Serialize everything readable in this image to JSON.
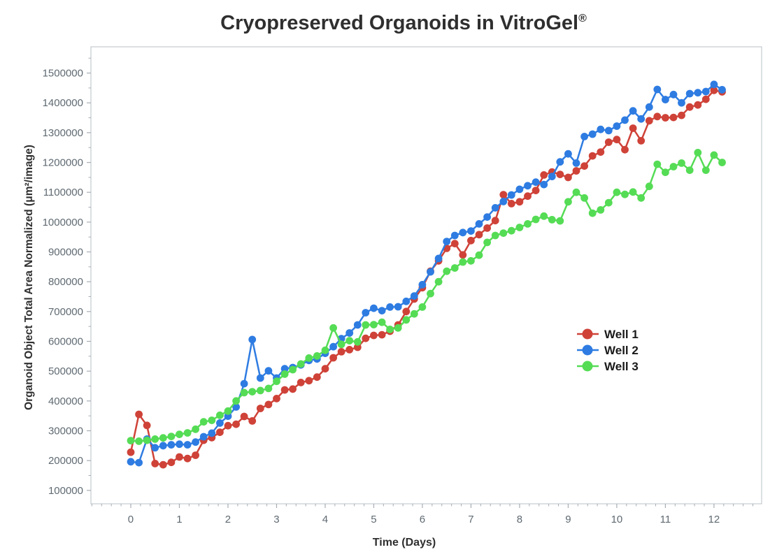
{
  "title": {
    "text": "Cryopreserved Organoids in VitroGel",
    "registered_mark": "®"
  },
  "chart_data": {
    "type": "line",
    "title": "Cryopreserved Organoids in VitroGel®",
    "xlabel": "Time (Days)",
    "ylabel": "Organoid Object Total Area Normalized (μm²/image)",
    "xlim": [
      -0.82,
      12.98
    ],
    "ylim": [
      55000,
      1588000
    ],
    "x_ticks": [
      0,
      1,
      2,
      3,
      4,
      5,
      6,
      7,
      8,
      9,
      10,
      11,
      12
    ],
    "x_minor_tick_step": 0.2,
    "y_ticks": [
      100000,
      200000,
      300000,
      400000,
      500000,
      600000,
      700000,
      800000,
      900000,
      1000000,
      1100000,
      1200000,
      1300000,
      1400000,
      1500000
    ],
    "y_minor_tick_step": 50000,
    "grid": false,
    "legend_position": "center-right",
    "marker": "circle",
    "x": [
      0,
      0.167,
      0.333,
      0.5,
      0.667,
      0.833,
      1,
      1.167,
      1.333,
      1.5,
      1.667,
      1.833,
      2,
      2.167,
      2.333,
      2.5,
      2.667,
      2.833,
      3,
      3.167,
      3.333,
      3.5,
      3.667,
      3.833,
      4,
      4.167,
      4.333,
      4.5,
      4.667,
      4.833,
      5,
      5.167,
      5.333,
      5.5,
      5.667,
      5.833,
      6,
      6.167,
      6.333,
      6.5,
      6.667,
      6.833,
      7,
      7.167,
      7.333,
      7.5,
      7.667,
      7.833,
      8,
      8.167,
      8.333,
      8.5,
      8.667,
      8.833,
      9,
      9.167,
      9.333,
      9.5,
      9.667,
      9.833,
      10,
      10.167,
      10.333,
      10.5,
      10.667,
      10.833,
      11,
      11.167,
      11.333,
      11.5,
      11.667,
      11.833,
      12,
      12.167
    ],
    "series": [
      {
        "name": "Well 1",
        "color": "#cf4238",
        "values": [
          228000,
          355000,
          318000,
          190000,
          186000,
          194000,
          212000,
          207000,
          218000,
          268000,
          277000,
          295000,
          317000,
          322000,
          348000,
          333000,
          375000,
          388000,
          408000,
          437000,
          440000,
          462000,
          468000,
          480000,
          508000,
          545000,
          565000,
          572000,
          580000,
          610000,
          620000,
          622000,
          634000,
          655000,
          700000,
          742000,
          780000,
          835000,
          870000,
          912000,
          928000,
          890000,
          938000,
          958000,
          980000,
          1005000,
          1092000,
          1062000,
          1068000,
          1087000,
          1106000,
          1158000,
          1168000,
          1160000,
          1150000,
          1172000,
          1188000,
          1222000,
          1235000,
          1268000,
          1277000,
          1243000,
          1315000,
          1273000,
          1340000,
          1354000,
          1350000,
          1351000,
          1358000,
          1386000,
          1393000,
          1412000,
          1442000,
          1437000
        ]
      },
      {
        "name": "Well 2",
        "color": "#2e7ce2",
        "values": [
          196000,
          193000,
          272000,
          243000,
          250000,
          253000,
          255000,
          253000,
          262000,
          280000,
          292000,
          326000,
          349000,
          380000,
          458000,
          606000,
          477000,
          501000,
          477000,
          508000,
          512000,
          521000,
          536000,
          541000,
          560000,
          582000,
          609000,
          628000,
          655000,
          696000,
          711000,
          703000,
          715000,
          716000,
          734000,
          752000,
          790000,
          833000,
          878000,
          935000,
          955000,
          965000,
          970000,
          994000,
          1017000,
          1048000,
          1069000,
          1091000,
          1110000,
          1122000,
          1134000,
          1126000,
          1153000,
          1202000,
          1229000,
          1198000,
          1287000,
          1295000,
          1311000,
          1307000,
          1322000,
          1342000,
          1373000,
          1346000,
          1386000,
          1445000,
          1411000,
          1428000,
          1400000,
          1431000,
          1434000,
          1438000,
          1462000,
          1444000
        ]
      },
      {
        "name": "Well 3",
        "color": "#55dc55",
        "values": [
          267000,
          265000,
          268000,
          272000,
          276000,
          281000,
          288000,
          293000,
          305000,
          330000,
          335000,
          352000,
          366000,
          400000,
          428000,
          431000,
          435000,
          442000,
          466000,
          490000,
          505000,
          524000,
          544000,
          551000,
          570000,
          645000,
          590000,
          602000,
          598000,
          655000,
          656000,
          664000,
          640000,
          645000,
          672000,
          692000,
          715000,
          760000,
          800000,
          835000,
          846000,
          866000,
          870000,
          889000,
          932000,
          955000,
          963000,
          971000,
          982000,
          994000,
          1009000,
          1020000,
          1008000,
          1004000,
          1068000,
          1100000,
          1081000,
          1030000,
          1041000,
          1065000,
          1100000,
          1093000,
          1101000,
          1081000,
          1120000,
          1194000,
          1167000,
          1186000,
          1198000,
          1174000,
          1233000,
          1174000,
          1225000,
          1200000
        ]
      }
    ]
  },
  "style": {
    "frame_color": "#c5cacf",
    "tick_color": "#a7adb3",
    "tick_label_color": "#5f6a72",
    "text_color": "#2f2f2f"
  }
}
